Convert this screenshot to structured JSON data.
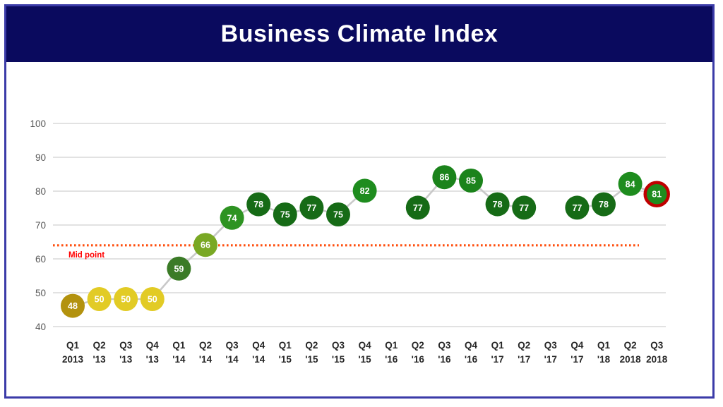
{
  "title": "Business Climate Index",
  "colors": {
    "banner_bg": "#0A0A5E",
    "panel_border": "#3B3BA8",
    "gridline": "#D9D9D9",
    "connector": "#C9C9C9",
    "midline": "#FF4E0D",
    "midline_label_color": "#FF0000",
    "y_axis_label": "#595959",
    "x_axis_label": "#262626",
    "value_text": "#FFFFFF",
    "highlight_ring": "#C00000"
  },
  "chart_data": {
    "type": "line",
    "title": "Business Climate Index",
    "categories": [
      [
        "Q1",
        "2013"
      ],
      [
        "Q2",
        "'13"
      ],
      [
        "Q3",
        "'13"
      ],
      [
        "Q4",
        "'13"
      ],
      [
        "Q1",
        "'14"
      ],
      [
        "Q2",
        "'14"
      ],
      [
        "Q3",
        "'14"
      ],
      [
        "Q4",
        "'14"
      ],
      [
        "Q1",
        "'15"
      ],
      [
        "Q2",
        "'15"
      ],
      [
        "Q3",
        "'15"
      ],
      [
        "Q4",
        "'15"
      ],
      [
        "Q1",
        "'16"
      ],
      [
        "Q2",
        "'16"
      ],
      [
        "Q3",
        "'16"
      ],
      [
        "Q4",
        "'16"
      ],
      [
        "Q1",
        "'17"
      ],
      [
        "Q2",
        "'17"
      ],
      [
        "Q3",
        "'17"
      ],
      [
        "Q4",
        "'17"
      ],
      [
        "Q1",
        "'18"
      ],
      [
        "Q2",
        "2018"
      ],
      [
        "Q3",
        "2018"
      ]
    ],
    "values": [
      48,
      50,
      50,
      50,
      59,
      66,
      74,
      78,
      75,
      77,
      75,
      82,
      null,
      77,
      86,
      85,
      78,
      77,
      null,
      77,
      78,
      84,
      81
    ],
    "point_colors": [
      "#B3920E",
      "#E2CB25",
      "#E2CB25",
      "#E2CB25",
      "#3B7B27",
      "#79A824",
      "#2E9322",
      "#166B16",
      "#166B16",
      "#166B16",
      "#166B16",
      "#1E8C1E",
      null,
      "#166B16",
      "#1B831B",
      "#1B831B",
      "#166B16",
      "#166B16",
      null,
      "#166B16",
      "#166B16",
      "#1E8C1E",
      "#1E8C1E"
    ],
    "highlight_index": 22,
    "highlight_value": 81,
    "ylim": [
      40,
      100
    ],
    "yticks": [
      40,
      50,
      60,
      70,
      80,
      90,
      100
    ],
    "midline": {
      "label": "Mid point",
      "value": 64
    },
    "grid": true,
    "legend": false,
    "xlabel": "",
    "ylabel": ""
  }
}
